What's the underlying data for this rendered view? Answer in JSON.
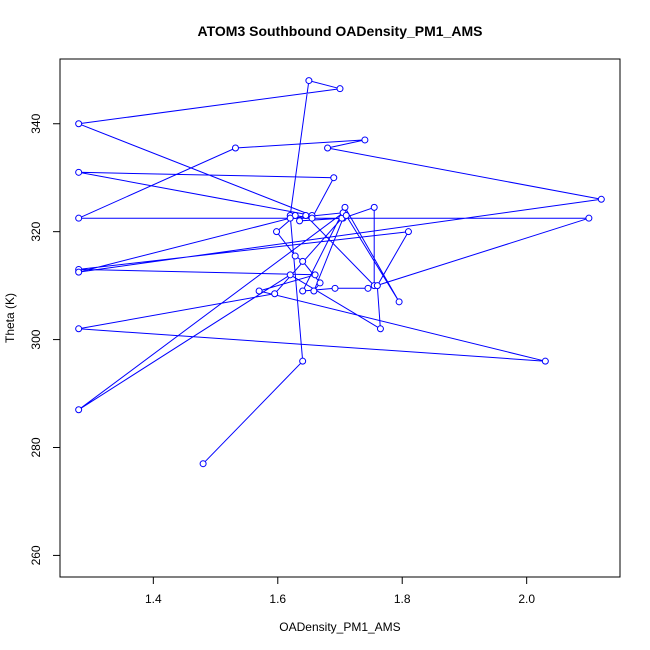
{
  "chart_data": {
    "type": "line",
    "title": "ATOM3 Southbound OADensity_PM1_AMS",
    "xlabel": "OADensity_PM1_AMS",
    "ylabel": "Theta (K)",
    "xlim": [
      1.25,
      2.15
    ],
    "ylim": [
      256,
      352
    ],
    "x_ticks": [
      1.4,
      1.6,
      1.8,
      2.0
    ],
    "y_ticks": [
      260,
      280,
      300,
      320,
      340
    ],
    "x_tick_labels": [
      "1.4",
      "1.6",
      "1.8",
      "2.0"
    ],
    "y_tick_labels": [
      "260",
      "280",
      "300",
      "320",
      "340"
    ],
    "grid": false,
    "series": [
      {
        "color": "#0000ff",
        "marker": "open-circle",
        "x": [
          1.48,
          1.64,
          1.62,
          1.65,
          1.7,
          1.28,
          1.655,
          1.28,
          1.69,
          1.655,
          1.628,
          1.598,
          1.628,
          1.64,
          1.668,
          1.658,
          1.705,
          1.755,
          1.755,
          1.645,
          1.635,
          1.703,
          1.595,
          1.28,
          2.03,
          1.57,
          1.66,
          1.28,
          1.81,
          1.76,
          1.765,
          1.62,
          1.28,
          1.705,
          1.62,
          1.28,
          2.12,
          1.68,
          1.74,
          1.532,
          1.28,
          2.1,
          1.745,
          1.692,
          1.64,
          1.708,
          1.795,
          1.71
        ],
        "y": [
          277,
          296,
          323,
          348,
          346.5,
          340,
          323,
          331,
          330,
          322.5,
          323,
          320,
          315.5,
          314.5,
          310.5,
          309,
          322.5,
          324.5,
          310,
          323,
          322,
          322.5,
          308.5,
          302,
          296,
          309,
          312,
          313,
          320,
          310,
          302,
          312,
          287,
          323.5,
          322.5,
          312.5,
          326,
          335.5,
          337,
          335.5,
          322.5,
          322.5,
          309.5,
          309.5,
          309,
          324.5,
          307,
          323
        ]
      }
    ]
  }
}
